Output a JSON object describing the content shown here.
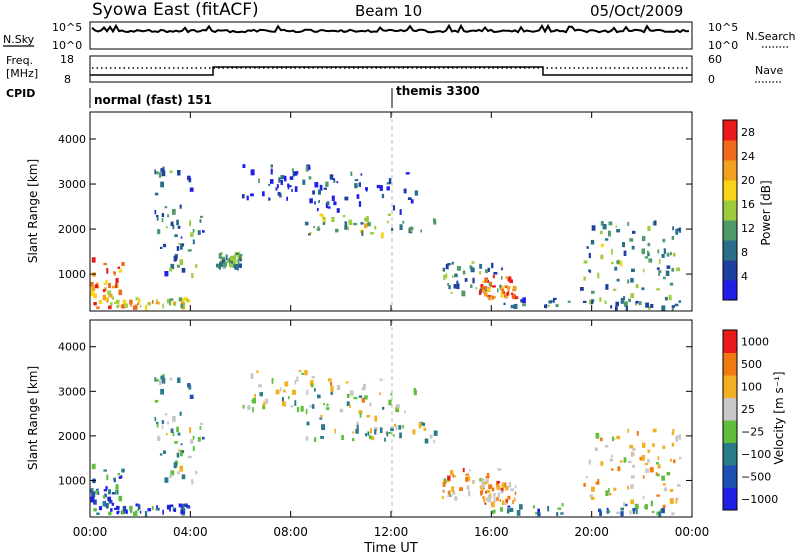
{
  "header": {
    "station": "Syowa East (fitACF)",
    "beam": "Beam 10",
    "date": "05/Oct/2009"
  },
  "top_panels": {
    "nsky_label": "N.Sky",
    "nsky_ticks": [
      "10^5",
      "10^0"
    ],
    "nsearch_label": "N.Search",
    "nsearch_ticks": [
      "10^5",
      "10^0"
    ],
    "freq_label": "Freq.",
    "freq_unit": "[MHz]",
    "freq_ticks": [
      "18",
      "8"
    ],
    "nave_label": "Nave",
    "nave_ticks": [
      "60",
      "0"
    ],
    "cpid_label": "CPID",
    "cpid_segments": [
      {
        "name": "normal (fast) 151",
        "start_hour": 0
      },
      {
        "name": "themis 3300",
        "start_hour": 12
      }
    ]
  },
  "colors": {
    "power_scale": [
      "#1f1fe6",
      "#1f3fa0",
      "#2a6e8a",
      "#4f9a6a",
      "#9ccc3c",
      "#f7d417",
      "#f2a01f",
      "#ef6a1a",
      "#e81a1a"
    ],
    "velocity_scale": [
      "#1f1fe6",
      "#1f4fb0",
      "#2a7a8a",
      "#5fbf3a",
      "#c8c8c8",
      "#f0b020",
      "#f07a10",
      "#e81a1a"
    ]
  },
  "chart_data": [
    {
      "type": "heatmap",
      "title": "Power",
      "xlabel": "Time UT",
      "ylabel": "Slant Range [km]",
      "x_ticks": [
        "00:00",
        "04:00",
        "08:00",
        "12:00",
        "16:00",
        "20:00",
        "00:00"
      ],
      "y_ticks": [
        1000,
        2000,
        3000,
        4000
      ],
      "xlim_hours": [
        0,
        24
      ],
      "ylim_km": [
        180,
        4600
      ],
      "colorbar_label": "Power [dB]",
      "colorbar_ticks": [
        4,
        8,
        12,
        16,
        20,
        24,
        28
      ],
      "colorbar_range": [
        0,
        30
      ],
      "regions": [
        {
          "t0": 0.0,
          "t1": 1.3,
          "r0": 250,
          "r1": 1400,
          "level": 0.75
        },
        {
          "t0": 0.8,
          "t1": 4.0,
          "r0": 300,
          "r1": 500,
          "level": 0.6
        },
        {
          "t0": 2.5,
          "t1": 4.5,
          "r0": 1000,
          "r1": 3500,
          "level": 0.3
        },
        {
          "t0": 5.0,
          "t1": 6.0,
          "r0": 1200,
          "r1": 1500,
          "level": 0.35
        },
        {
          "t0": 6.0,
          "t1": 9.0,
          "r0": 2600,
          "r1": 3500,
          "level": 0.15
        },
        {
          "t0": 8.5,
          "t1": 13.8,
          "r0": 1900,
          "r1": 2350,
          "level": 0.45
        },
        {
          "t0": 9.0,
          "t1": 13.0,
          "r0": 2400,
          "r1": 3300,
          "level": 0.15
        },
        {
          "t0": 14.0,
          "t1": 16.5,
          "r0": 600,
          "r1": 1300,
          "level": 0.35
        },
        {
          "t0": 15.5,
          "t1": 17.0,
          "r0": 500,
          "r1": 1000,
          "level": 0.8
        },
        {
          "t0": 16.0,
          "t1": 23.5,
          "r0": 280,
          "r1": 500,
          "level": 0.3
        },
        {
          "t0": 19.5,
          "t1": 23.5,
          "r0": 400,
          "r1": 2200,
          "level": 0.35
        }
      ]
    },
    {
      "type": "heatmap",
      "title": "Velocity",
      "xlabel": "Time UT",
      "ylabel": "Slant Range [km]",
      "x_ticks": [
        "00:00",
        "04:00",
        "08:00",
        "12:00",
        "16:00",
        "20:00",
        "00:00"
      ],
      "y_ticks": [
        1000,
        2000,
        3000,
        4000
      ],
      "xlim_hours": [
        0,
        24
      ],
      "ylim_km": [
        180,
        4600
      ],
      "colorbar_label": "Velocity [m s⁻¹]",
      "colorbar_ticks": [
        "1000",
        "500",
        "100",
        "25",
        "−25",
        "−100",
        "−500",
        "−1000"
      ],
      "colorbar_range": [
        -1000,
        1000
      ],
      "regions": [
        {
          "t0": 0.0,
          "t1": 1.3,
          "r0": 250,
          "r1": 1400,
          "level": 0.25
        },
        {
          "t0": 0.8,
          "t1": 4.0,
          "r0": 300,
          "r1": 500,
          "level": 0.2
        },
        {
          "t0": 2.5,
          "t1": 4.5,
          "r0": 1000,
          "r1": 3500,
          "level": 0.45
        },
        {
          "t0": 6.0,
          "t1": 9.0,
          "r0": 2600,
          "r1": 3500,
          "level": 0.5
        },
        {
          "t0": 8.5,
          "t1": 13.8,
          "r0": 1900,
          "r1": 2350,
          "level": 0.5
        },
        {
          "t0": 9.0,
          "t1": 13.0,
          "r0": 2400,
          "r1": 3300,
          "level": 0.55
        },
        {
          "t0": 14.0,
          "t1": 16.5,
          "r0": 600,
          "r1": 1300,
          "level": 0.7
        },
        {
          "t0": 15.5,
          "t1": 17.0,
          "r0": 500,
          "r1": 1000,
          "level": 0.75
        },
        {
          "t0": 16.0,
          "t1": 23.5,
          "r0": 280,
          "r1": 500,
          "level": 0.3
        },
        {
          "t0": 19.5,
          "t1": 23.5,
          "r0": 400,
          "r1": 2200,
          "level": 0.65
        }
      ]
    }
  ]
}
